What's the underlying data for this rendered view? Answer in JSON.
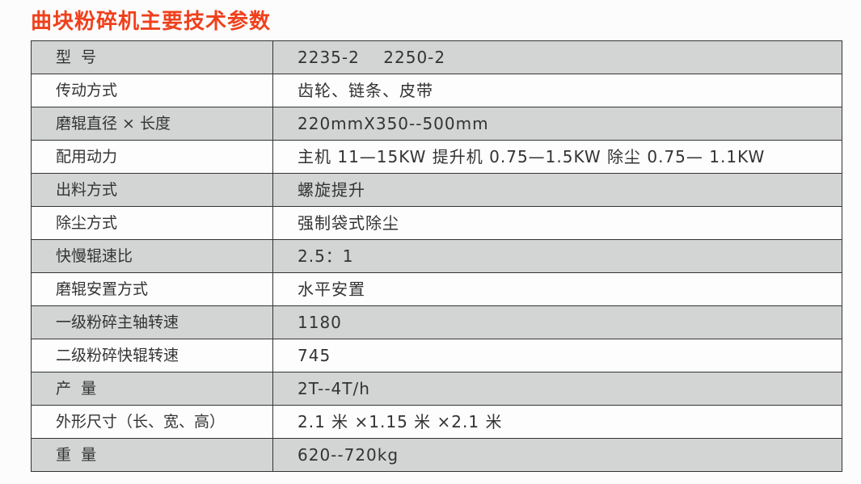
{
  "title": "曲块粉碎机主要技术参数",
  "rows": [
    {
      "label": "型  号",
      "value": "2235-2    2250-2"
    },
    {
      "label": "传动方式",
      "value": "齿轮、链条、皮带"
    },
    {
      "label": "磨辊直径 × 长度",
      "value": "220mmX350--500mm"
    },
    {
      "label": "配用动力",
      "value": "主机 11—15KW 提升机 0.75—1.5KW 除尘 0.75— 1.1KW"
    },
    {
      "label": "出料方式",
      "value": "螺旋提升"
    },
    {
      "label": "除尘方式",
      "value": "强制袋式除尘"
    },
    {
      "label": "快慢辊速比",
      "value": "2.5：1"
    },
    {
      "label": "磨辊安置方式",
      "value": "水平安置"
    },
    {
      "label": "一级粉碎主轴转速",
      "value": "1180"
    },
    {
      "label": "二级粉碎快辊转速",
      "value": "745"
    },
    {
      "label": "产  量",
      "value": "2T--4T/h"
    },
    {
      "label": "外形尺寸（长、宽、高）",
      "value": "2.1 米 ×1.15 米 ×2.1 米"
    },
    {
      "label": "重  量",
      "value": "620--720kg"
    }
  ]
}
